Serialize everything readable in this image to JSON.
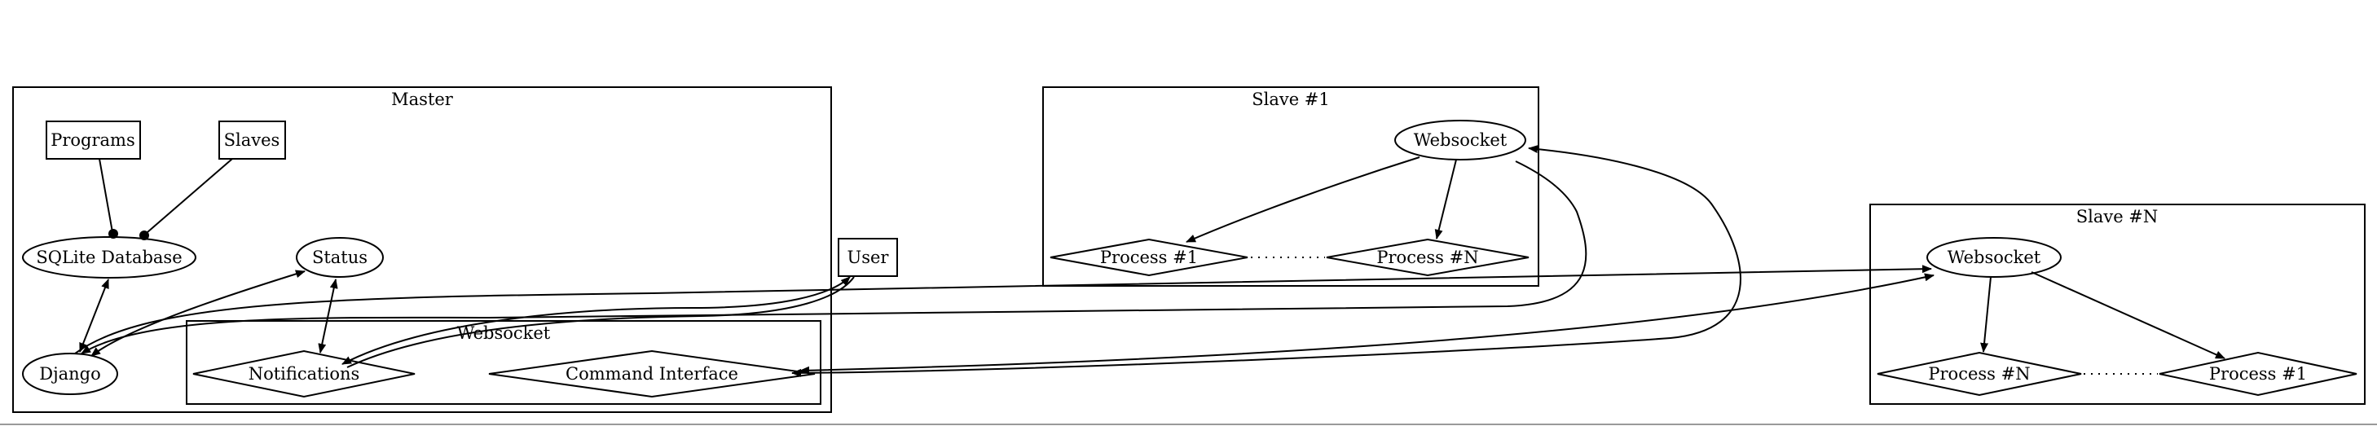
{
  "clusters": {
    "master": "Master",
    "master_websocket": "Websocket",
    "slave1": "Slave #1",
    "slaven": "Slave #N"
  },
  "nodes": {
    "programs": "Programs",
    "slaves": "Slaves",
    "sqlite_database": "SQLite Database",
    "status": "Status",
    "django": "Django",
    "notifications": "Notifications",
    "command_interface": "Command Interface",
    "user": "User",
    "slave1_websocket": "Websocket",
    "slave1_process_1": "Process #1",
    "slave1_process_n": "Process #N",
    "slaven_websocket": "Websocket",
    "slaven_process_n": "Process #N",
    "slaven_process_1": "Process #1"
  }
}
